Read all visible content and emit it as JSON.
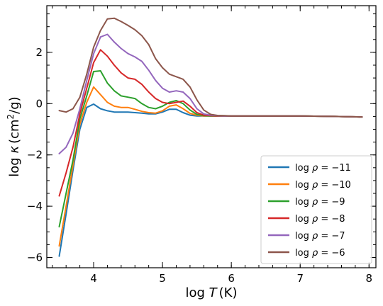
{
  "chart_data": {
    "type": "line",
    "xlabel_main": "log",
    "xlabel_var": "T",
    "xlabel_unit": "(K)",
    "ylabel_main": "log",
    "ylabel_var": "κ",
    "ylabel_unit_pre": "(cm",
    "ylabel_unit_sup": "2",
    "ylabel_unit_post": "/g)",
    "xlim": [
      3.32,
      8.1
    ],
    "ylim": [
      -6.4,
      3.82
    ],
    "x_major_ticks": [
      4,
      5,
      6,
      7,
      8
    ],
    "x_tick_labels": [
      "4",
      "5",
      "6",
      "7",
      "8"
    ],
    "y_major_ticks": [
      -6,
      -4,
      -2,
      0,
      2
    ],
    "y_tick_labels": [
      "−6",
      "−4",
      "−2",
      "0",
      "2"
    ],
    "x_minor_step": 0.2,
    "y_minor_step": 0.5,
    "grid": false,
    "legend_position": "lower-right",
    "x": [
      3.5,
      3.6,
      3.7,
      3.8,
      3.9,
      4.0,
      4.1,
      4.2,
      4.3,
      4.4,
      4.5,
      4.6,
      4.7,
      4.8,
      4.9,
      5.0,
      5.1,
      5.2,
      5.3,
      5.4,
      5.5,
      5.6,
      5.7,
      5.8,
      5.9,
      6.0,
      6.5,
      7.0,
      7.5,
      7.9
    ],
    "series": [
      {
        "name_prefix": "log ",
        "name_var": "ρ",
        "name_suffix": " = −11",
        "color": "#1f77b4",
        "values": [
          -5.95,
          -4.3,
          -2.6,
          -1.0,
          -0.15,
          -0.02,
          -0.2,
          -0.28,
          -0.33,
          -0.33,
          -0.33,
          -0.35,
          -0.37,
          -0.4,
          -0.4,
          -0.33,
          -0.22,
          -0.22,
          -0.35,
          -0.45,
          -0.48,
          -0.48,
          -0.48,
          -0.48,
          -0.48,
          -0.48,
          -0.48,
          -0.48,
          -0.5,
          -0.52
        ]
      },
      {
        "name_prefix": "log ",
        "name_var": "ρ",
        "name_suffix": " = −10",
        "color": "#ff7f0e",
        "values": [
          -5.55,
          -4.0,
          -2.4,
          -0.8,
          0.05,
          0.65,
          0.35,
          0.05,
          -0.1,
          -0.15,
          -0.15,
          -0.22,
          -0.3,
          -0.35,
          -0.37,
          -0.28,
          -0.1,
          -0.05,
          -0.2,
          -0.38,
          -0.45,
          -0.48,
          -0.48,
          -0.48,
          -0.48,
          -0.48,
          -0.48,
          -0.48,
          -0.5,
          -0.52
        ]
      },
      {
        "name_prefix": "log ",
        "name_var": "ρ",
        "name_suffix": " = −9",
        "color": "#2ca02c",
        "values": [
          -4.8,
          -3.5,
          -2.2,
          -0.6,
          0.3,
          1.25,
          1.28,
          0.8,
          0.5,
          0.3,
          0.25,
          0.2,
          0.0,
          -0.15,
          -0.2,
          -0.1,
          0.05,
          0.12,
          0.0,
          -0.25,
          -0.42,
          -0.47,
          -0.48,
          -0.48,
          -0.48,
          -0.48,
          -0.48,
          -0.48,
          -0.5,
          -0.52
        ]
      },
      {
        "name_prefix": "log ",
        "name_var": "ρ",
        "name_suffix": " = −8",
        "color": "#d62728",
        "values": [
          -3.6,
          -2.7,
          -1.7,
          -0.4,
          0.6,
          1.6,
          2.1,
          1.85,
          1.5,
          1.2,
          1.0,
          0.95,
          0.75,
          0.45,
          0.2,
          0.05,
          0.0,
          0.05,
          0.1,
          -0.1,
          -0.35,
          -0.45,
          -0.47,
          -0.48,
          -0.48,
          -0.48,
          -0.48,
          -0.48,
          -0.5,
          -0.52
        ]
      },
      {
        "name_prefix": "log ",
        "name_var": "ρ",
        "name_suffix": " = −7",
        "color": "#9467bd",
        "values": [
          -1.95,
          -1.7,
          -1.15,
          -0.2,
          0.9,
          1.95,
          2.6,
          2.7,
          2.4,
          2.15,
          1.95,
          1.82,
          1.65,
          1.3,
          0.9,
          0.6,
          0.45,
          0.5,
          0.45,
          0.2,
          -0.2,
          -0.4,
          -0.45,
          -0.47,
          -0.48,
          -0.48,
          -0.48,
          -0.48,
          -0.5,
          -0.52
        ]
      },
      {
        "name_prefix": "log ",
        "name_var": "ρ",
        "name_suffix": " = −6",
        "color": "#8c564b",
        "values": [
          -0.27,
          -0.33,
          -0.2,
          0.25,
          1.15,
          2.2,
          2.85,
          3.3,
          3.33,
          3.2,
          3.05,
          2.88,
          2.65,
          2.3,
          1.75,
          1.4,
          1.15,
          1.05,
          0.95,
          0.65,
          0.15,
          -0.25,
          -0.42,
          -0.46,
          -0.47,
          -0.48,
          -0.48,
          -0.48,
          -0.5,
          -0.52
        ]
      }
    ]
  }
}
